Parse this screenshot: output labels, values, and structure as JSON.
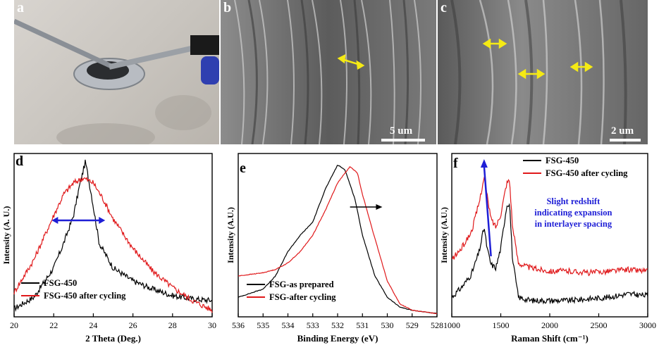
{
  "panels": {
    "a": {
      "letter": "a"
    },
    "b": {
      "letter": "b",
      "scale": "5 um"
    },
    "c": {
      "letter": "c",
      "scale": "2 um"
    },
    "d": {
      "letter": "d"
    },
    "e": {
      "letter": "e"
    },
    "f": {
      "letter": "f"
    }
  },
  "colors": {
    "black": "#000000",
    "red": "#e0191b",
    "blue": "#1f1fd6",
    "arrow_yellow": "#f5ea14"
  },
  "chart_data": [
    {
      "id": "d",
      "type": "line",
      "xlabel": "2 Theta (Deg.)",
      "ylabel": "Intensity (A. U.)",
      "xlim": [
        20,
        30
      ],
      "xticks": [
        20,
        22,
        24,
        26,
        28,
        30
      ],
      "series": [
        {
          "name": "FSG-450",
          "color": "#000000",
          "x": [
            20,
            21,
            22,
            22.5,
            23,
            23.3,
            23.6,
            23.9,
            24.3,
            25,
            26,
            27,
            28,
            29,
            30
          ],
          "y": [
            0.05,
            0.12,
            0.3,
            0.45,
            0.62,
            0.8,
            0.95,
            0.75,
            0.45,
            0.3,
            0.22,
            0.17,
            0.13,
            0.11,
            0.1
          ]
        },
        {
          "name": "FSG-450 after cycling",
          "color": "#e0191b",
          "x": [
            20,
            21,
            22,
            22.5,
            23,
            23.5,
            24,
            24.5,
            25,
            26,
            27,
            28,
            29,
            30
          ],
          "y": [
            0.15,
            0.35,
            0.62,
            0.75,
            0.82,
            0.85,
            0.82,
            0.72,
            0.6,
            0.42,
            0.28,
            0.18,
            0.1,
            0.04
          ]
        }
      ]
    },
    {
      "id": "e",
      "type": "line",
      "xlabel": "Binding Energy (eV)",
      "ylabel": "Intensity (A.U.)",
      "xlim": [
        536,
        528
      ],
      "xticks": [
        536,
        535,
        534,
        533,
        532,
        531,
        530,
        529,
        528
      ],
      "series": [
        {
          "name": "FSG-as prepared",
          "color": "#000000",
          "x": [
            536,
            535,
            534.5,
            534,
            533.5,
            533,
            532.5,
            532,
            531.7,
            531.3,
            531,
            530.5,
            530,
            529.5,
            529,
            528.5,
            528
          ],
          "y": [
            0.12,
            0.17,
            0.25,
            0.4,
            0.5,
            0.58,
            0.78,
            0.93,
            0.9,
            0.72,
            0.5,
            0.25,
            0.12,
            0.06,
            0.04,
            0.03,
            0.02
          ]
        },
        {
          "name": "FSG-after cycling",
          "color": "#e0191b",
          "x": [
            536,
            535,
            534.5,
            534,
            533.5,
            533,
            532.5,
            532,
            531.5,
            531.2,
            531,
            530.5,
            530,
            529.5,
            529,
            528.5,
            528
          ],
          "y": [
            0.25,
            0.27,
            0.29,
            0.33,
            0.4,
            0.5,
            0.65,
            0.82,
            0.92,
            0.88,
            0.75,
            0.48,
            0.22,
            0.08,
            0.04,
            0.03,
            0.02
          ]
        }
      ]
    },
    {
      "id": "f",
      "type": "line",
      "xlabel": "Raman Shift (cm⁻¹)",
      "ylabel": "Intensity (A.U.)",
      "xlim": [
        1000,
        3000
      ],
      "xticks": [
        1000,
        1500,
        2000,
        2500,
        3000
      ],
      "annotation": [
        "Slight redshift",
        "indicating expansion",
        "in interlayer spacing"
      ],
      "series": [
        {
          "name": "FSG-450",
          "color": "#000000",
          "x": [
            1000,
            1100,
            1200,
            1280,
            1330,
            1360,
            1400,
            1450,
            1500,
            1560,
            1590,
            1620,
            1680,
            1800,
            2000,
            2200,
            2400,
            2600,
            2800,
            3000
          ],
          "y": [
            0.12,
            0.18,
            0.26,
            0.4,
            0.55,
            0.42,
            0.32,
            0.3,
            0.42,
            0.68,
            0.7,
            0.35,
            0.12,
            0.1,
            0.1,
            0.1,
            0.11,
            0.12,
            0.14,
            0.13
          ]
        },
        {
          "name": "FSG-450 after cycling",
          "color": "#e0191b",
          "x": [
            1000,
            1100,
            1200,
            1280,
            1330,
            1350,
            1400,
            1450,
            1500,
            1560,
            1590,
            1620,
            1680,
            1800,
            2000,
            2200,
            2400,
            2600,
            2800,
            3000
          ],
          "y": [
            0.35,
            0.42,
            0.52,
            0.7,
            0.86,
            0.78,
            0.6,
            0.55,
            0.63,
            0.82,
            0.84,
            0.55,
            0.33,
            0.3,
            0.28,
            0.28,
            0.27,
            0.28,
            0.29,
            0.28
          ]
        }
      ]
    }
  ]
}
